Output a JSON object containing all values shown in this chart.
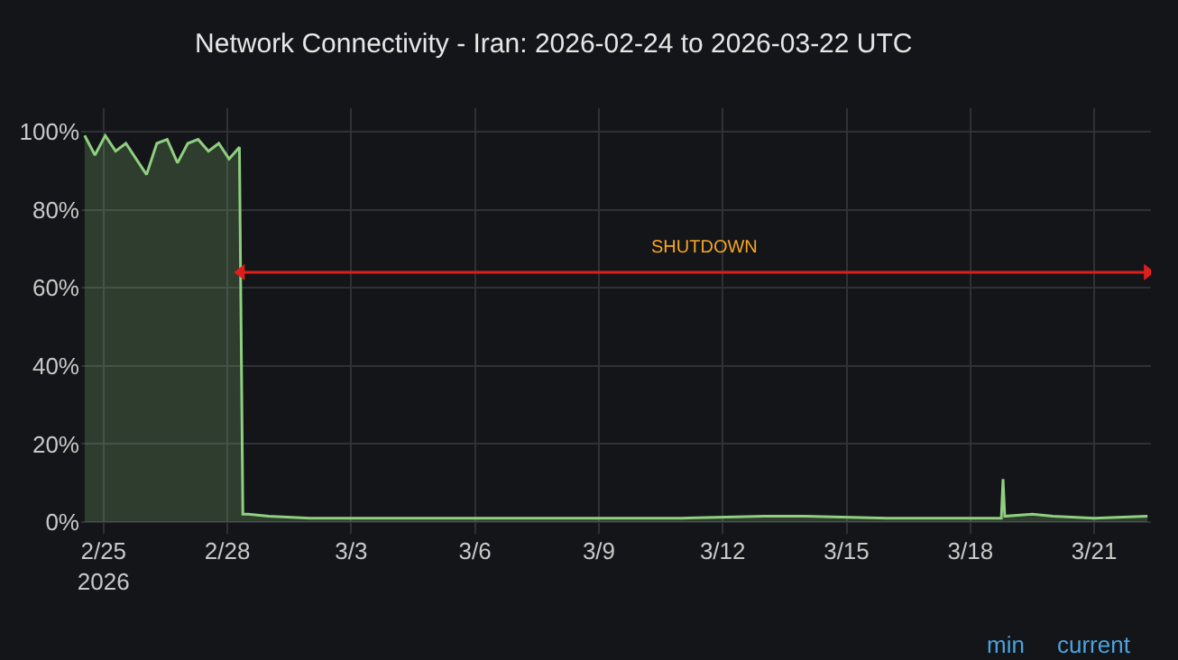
{
  "chart_data": {
    "type": "area",
    "title": "Network Connectivity - Iran: 2026-02-24 to 2026-03-22 UTC",
    "x": [
      "2026-02-24T13:00",
      "2026-02-24T19:00",
      "2026-02-25T01:00",
      "2026-02-25T07:00",
      "2026-02-25T13:00",
      "2026-02-25T19:00",
      "2026-02-26T01:00",
      "2026-02-26T07:00",
      "2026-02-26T13:00",
      "2026-02-26T19:00",
      "2026-02-27T01:00",
      "2026-02-27T07:00",
      "2026-02-27T13:00",
      "2026-02-27T19:00",
      "2026-02-28T01:00",
      "2026-02-28T07:00",
      "2026-02-28T09:00",
      "2026-02-28T12:00",
      "2026-03-01",
      "2026-03-02",
      "2026-03-05",
      "2026-03-08",
      "2026-03-11",
      "2026-03-13",
      "2026-03-14",
      "2026-03-16",
      "2026-03-18T18:00",
      "2026-03-18T19:00",
      "2026-03-18T20:00",
      "2026-03-19T12:00",
      "2026-03-20",
      "2026-03-21",
      "2026-03-22T07:00"
    ],
    "series": [
      {
        "color": "#8fcf80",
        "values": [
          99,
          94,
          99,
          95,
          97,
          93,
          89,
          97,
          98,
          92,
          97,
          98,
          95,
          97,
          93,
          96,
          2,
          2,
          1.5,
          1,
          1,
          1,
          1,
          1.5,
          1.5,
          1,
          1,
          11,
          1.5,
          2,
          1.5,
          1,
          1.5
        ]
      },
      {
        "type": "line",
        "name": "SHUTDOWN",
        "color": "#e01e1e",
        "marker": "triangle",
        "x": [
          "2026-02-28T08:00",
          "2026-03-22T07:00"
        ],
        "values": [
          64,
          64
        ]
      }
    ],
    "xlim": [
      "2026-02-24T11:00",
      "2026-03-22T09:00"
    ],
    "xticks": [
      {
        "value": "2026-02-25",
        "label": "2/25\n2026"
      },
      {
        "value": "2026-02-28",
        "label": "2/28"
      },
      {
        "value": "2026-03-03",
        "label": "3/3"
      },
      {
        "value": "2026-03-06",
        "label": "3/6"
      },
      {
        "value": "2026-03-09",
        "label": "3/9"
      },
      {
        "value": "2026-03-12",
        "label": "3/12"
      },
      {
        "value": "2026-03-15",
        "label": "3/15"
      },
      {
        "value": "2026-03-18",
        "label": "3/18"
      },
      {
        "value": "2026-03-21",
        "label": "3/21"
      }
    ],
    "ylim": [
      -3,
      106
    ],
    "yticks": [
      {
        "value": 0,
        "label": "0%"
      },
      {
        "value": 20,
        "label": "20%"
      },
      {
        "value": 40,
        "label": "40%"
      },
      {
        "value": 60,
        "label": "60%"
      },
      {
        "value": 80,
        "label": "80%"
      },
      {
        "value": 100,
        "label": "100%"
      }
    ],
    "annotations": [
      "min",
      "current"
    ],
    "grid": true
  }
}
